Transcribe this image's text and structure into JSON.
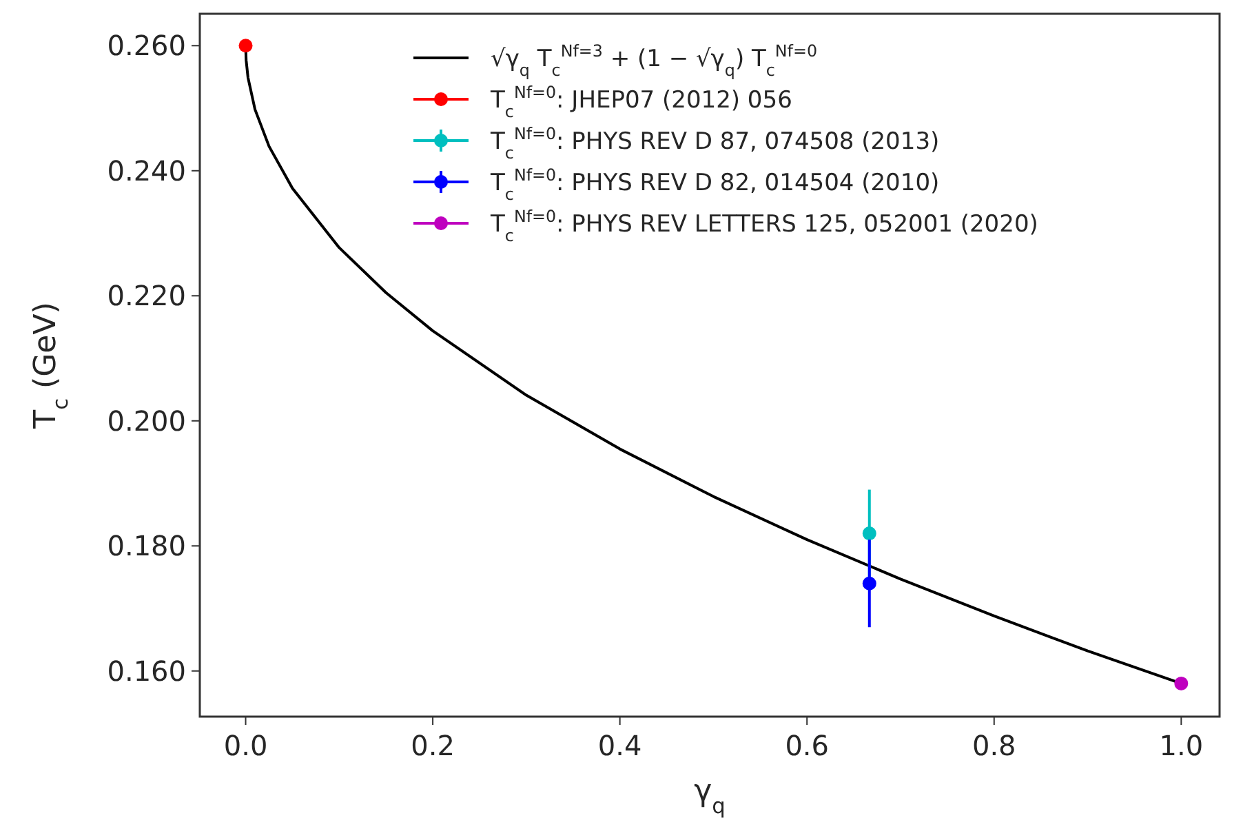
{
  "chart_data": {
    "type": "line",
    "xlabel": "γ$_{q}$",
    "ylabel": "T$_{c}$ (GeV)",
    "xlim": [
      -0.049,
      1.041
    ],
    "ylim": [
      0.1527,
      0.2651
    ],
    "xticks": [
      {
        "value": 0,
        "label": "0.0"
      },
      {
        "value": 0.2,
        "label": "0.2"
      },
      {
        "value": 0.4,
        "label": "0.4"
      },
      {
        "value": 0.6,
        "label": "0.6"
      },
      {
        "value": 0.8,
        "label": "0.8"
      },
      {
        "value": 1,
        "label": "1.0"
      }
    ],
    "yticks": [
      {
        "value": 0.16,
        "label": "0.160"
      },
      {
        "value": 0.18,
        "label": "0.180"
      },
      {
        "value": 0.2,
        "label": "0.200"
      },
      {
        "value": 0.22,
        "label": "0.220"
      },
      {
        "value": 0.24,
        "label": "0.240"
      },
      {
        "value": 0.26,
        "label": "0.260"
      }
    ],
    "grid": false,
    "legend": "top right",
    "series": [
      {
        "name": "√γ$_{q}$ T$_{c}$$^{Nf=3}$ + (1 − √γ$_{q}$) T$_{c}$$^{Nf=0}$",
        "color": "#000000",
        "marker": "none",
        "x": [
          0,
          0.0005,
          0.0025,
          0.01,
          0.025,
          0.05,
          0.1,
          0.15,
          0.2,
          0.3,
          0.4,
          0.5,
          0.6,
          0.7,
          0.8,
          0.9,
          1.0
        ],
        "values": [
          0.26,
          0.2577,
          0.2549,
          0.2498,
          0.2439,
          0.2372,
          0.2277,
          0.2205,
          0.2144,
          0.2041,
          0.1955,
          0.1879,
          0.181,
          0.1747,
          0.1688,
          0.1632,
          0.158
        ]
      },
      {
        "type": "scatter",
        "name": "T$_{c}$$^{Nf=0}$: JHEP07 (2012) 056",
        "color": "#ff0000",
        "marker": "circle",
        "x": [
          0
        ],
        "values": [
          0.26
        ]
      },
      {
        "type": "scatter",
        "name": "T$_{c}$$^{Nf=0}$: PHYS REV D 87, 074508 (2013)",
        "color": "#00bfbf",
        "marker": "circle",
        "x": [
          0.6667
        ],
        "values": [
          0.182
        ],
        "errors": [
          0.007
        ]
      },
      {
        "type": "scatter",
        "name": "T$_{c}$$^{Nf=0}$: PHYS REV D 82, 014504 (2010)",
        "color": "#0000ff",
        "marker": "circle",
        "x": [
          0.6667
        ],
        "values": [
          0.174
        ],
        "errors": [
          0.007
        ]
      },
      {
        "type": "scatter",
        "name": "T$_{c}$$^{Nf=0}$: PHYS REV LETTERS 125, 052001 (2020)",
        "color": "#bf00bf",
        "marker": "circle",
        "x": [
          1.0
        ],
        "values": [
          0.158
        ]
      }
    ]
  }
}
